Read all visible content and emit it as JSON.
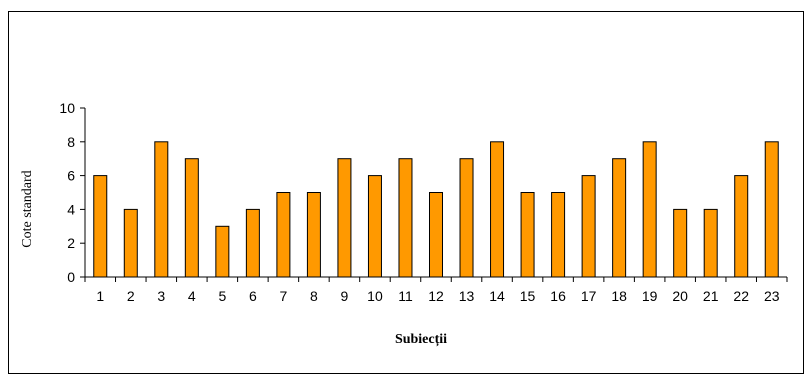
{
  "chart_data": {
    "type": "bar",
    "title": "",
    "xlabel": "Subiecții",
    "ylabel": "Cote standard",
    "ylim": [
      0,
      10
    ],
    "yticks": [
      "0",
      "2",
      "4",
      "6",
      "8",
      "10"
    ],
    "categories": [
      "1",
      "2",
      "3",
      "4",
      "5",
      "6",
      "7",
      "8",
      "9",
      "10",
      "11",
      "12",
      "13",
      "14",
      "15",
      "16",
      "17",
      "18",
      "19",
      "20",
      "21",
      "22",
      "23"
    ],
    "values": [
      6,
      4,
      8,
      7,
      3,
      4,
      5,
      5,
      7,
      6,
      7,
      5,
      7,
      8,
      5,
      5,
      6,
      7,
      8,
      4,
      4,
      6,
      8
    ],
    "grid": false,
    "legend": "none",
    "bar_color": "#FF9900",
    "bar_edge_color": "#000000"
  }
}
